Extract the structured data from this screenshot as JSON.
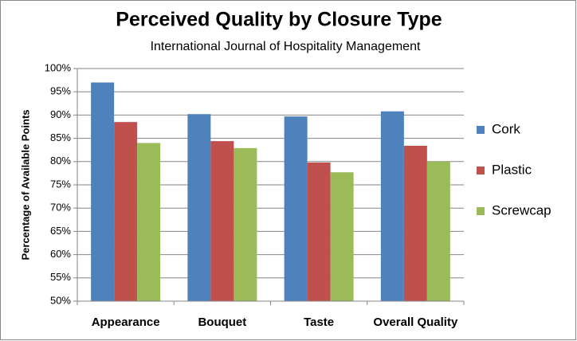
{
  "chart_data": {
    "type": "bar",
    "title": "Perceived Quality by Closure Type",
    "subtitle": "International Journal of Hospitality Management",
    "y_label": "Percentage of Available Points",
    "categories": [
      "Appearance",
      "Bouquet",
      "Taste",
      "Overall Quality"
    ],
    "series": [
      {
        "name": "Cork",
        "color": "#4f81bd",
        "values": [
          97,
          90.2,
          89.7,
          90.8
        ]
      },
      {
        "name": "Plastic",
        "color": "#c0504d",
        "values": [
          88.5,
          84.4,
          79.8,
          83.4
        ]
      },
      {
        "name": "Screwcap",
        "color": "#9bbb59",
        "values": [
          84,
          82.9,
          77.7,
          80
        ]
      }
    ],
    "ylim": [
      50,
      100
    ],
    "yticks": [
      {
        "value": 50,
        "label": "50%"
      },
      {
        "value": 55,
        "label": "55%"
      },
      {
        "value": 60,
        "label": "60%"
      },
      {
        "value": 65,
        "label": "65%"
      },
      {
        "value": 70,
        "label": "70%"
      },
      {
        "value": 75,
        "label": "75%"
      },
      {
        "value": 80,
        "label": "80%"
      },
      {
        "value": 85,
        "label": "85%"
      },
      {
        "value": 90,
        "label": "90%"
      },
      {
        "value": 95,
        "label": "95%"
      },
      {
        "value": 100,
        "label": "100%"
      }
    ],
    "grid": true,
    "legend": "right"
  }
}
